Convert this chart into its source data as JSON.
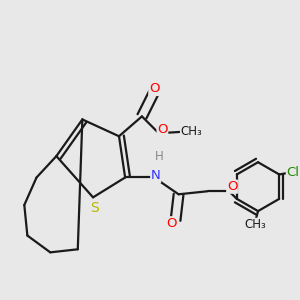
{
  "background_color": "#e8e8e8",
  "bond_color": "#1a1a1a",
  "atom_colors": {
    "O": "#ff0000",
    "N": "#3333ff",
    "S": "#b8b800",
    "Cl": "#228800",
    "H": "#888888",
    "C": "#1a1a1a",
    "Me": "#1a1a1a"
  },
  "bond_lw": 1.6,
  "font_size": 9.5
}
